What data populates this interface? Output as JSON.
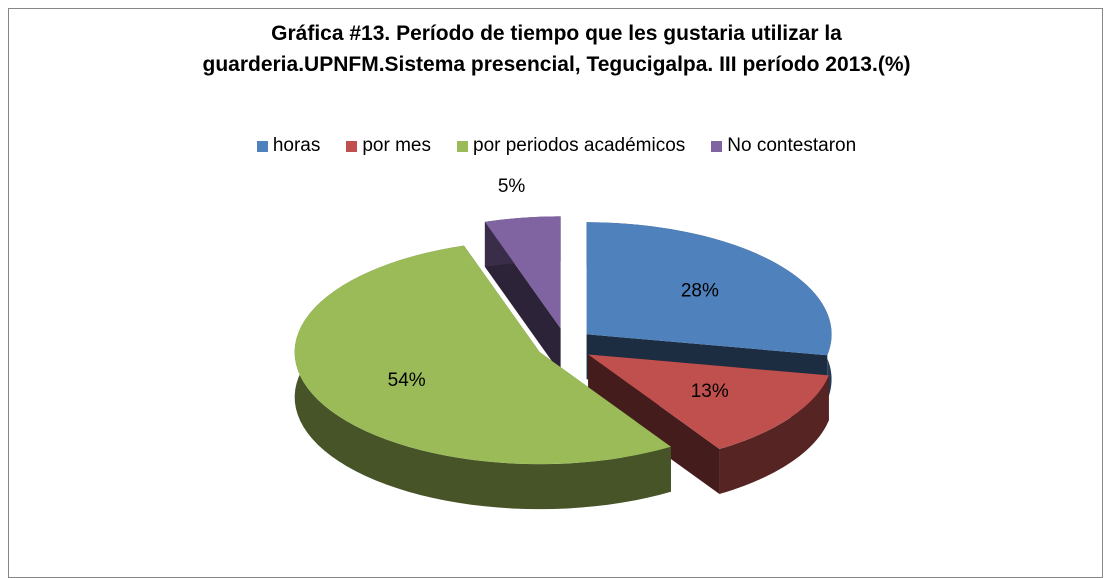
{
  "chart_data": {
    "type": "pie3d",
    "title": "Gráfica #13. Período de tiempo que les gustaria utilizar la guarderia.UPNFM.Sistema presencial, Tegucigalpa. III período 2013.(%)",
    "categories": [
      "horas",
      "por mes",
      "por periodos académicos",
      "No contestaron"
    ],
    "values": [
      28,
      13,
      54,
      5
    ],
    "value_labels": [
      "28%",
      "13%",
      "54%",
      "5%"
    ],
    "colors": [
      "#4f81bd",
      "#c0504d",
      "#9bbb59",
      "#8064a2"
    ],
    "legend": "top"
  }
}
